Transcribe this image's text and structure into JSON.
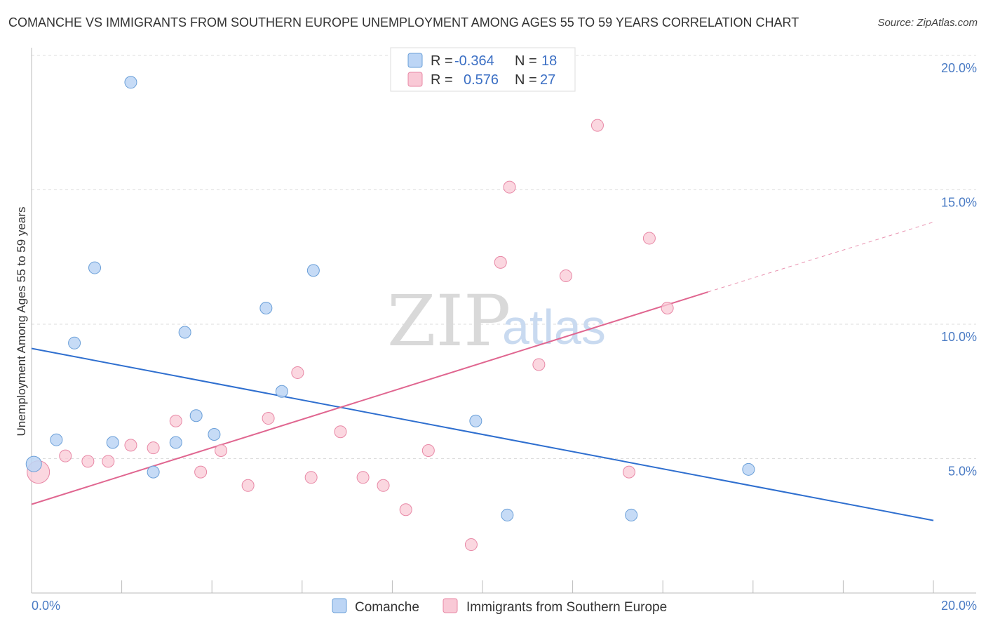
{
  "header": {
    "title": "COMANCHE VS IMMIGRANTS FROM SOUTHERN EUROPE UNEMPLOYMENT AMONG AGES 55 TO 59 YEARS CORRELATION CHART",
    "source": "Source: ZipAtlas.com"
  },
  "watermark": {
    "zip": "ZIP",
    "atlas": "atlas"
  },
  "legend": {
    "r_label": "R =",
    "n_label": "N =",
    "rows": [
      {
        "r": "-0.364",
        "n": "18"
      },
      {
        "r": "0.576",
        "n": "27"
      }
    ]
  },
  "colors": {
    "comanche_fill": "#bcd5f5",
    "comanche_stroke": "#6a9fd8",
    "comanche_line": "#2f6fcf",
    "immigrants_fill": "#f9c9d6",
    "immigrants_stroke": "#e888a6",
    "immigrants_line": "#e06690"
  },
  "chart_data": {
    "type": "scatter",
    "title": "COMANCHE VS IMMIGRANTS FROM SOUTHERN EUROPE UNEMPLOYMENT AMONG AGES 55 TO 59 YEARS CORRELATION CHART",
    "xlabel": "",
    "ylabel": "Unemployment Among Ages 55 to 59 years",
    "xlim": [
      0,
      20
    ],
    "ylim": [
      0,
      20
    ],
    "x_tick_labels": [
      "0.0%",
      "20.0%"
    ],
    "y_ticks": [
      5,
      10,
      15,
      20
    ],
    "y_tick_labels": [
      "5.0%",
      "10.0%",
      "15.0%",
      "20.0%"
    ],
    "grid": true,
    "legend_position": "top-center",
    "series": [
      {
        "name": "Comanche",
        "r": -0.364,
        "n": 18,
        "points": [
          [
            0.05,
            4.8
          ],
          [
            0.55,
            5.7
          ],
          [
            0.95,
            9.3
          ],
          [
            1.4,
            12.1
          ],
          [
            1.8,
            5.6
          ],
          [
            2.2,
            19.0
          ],
          [
            2.7,
            4.5
          ],
          [
            3.2,
            5.6
          ],
          [
            3.4,
            9.7
          ],
          [
            3.65,
            6.6
          ],
          [
            4.05,
            5.9
          ],
          [
            5.2,
            10.6
          ],
          [
            5.55,
            7.5
          ],
          [
            6.25,
            12.0
          ],
          [
            9.85,
            6.4
          ],
          [
            10.55,
            2.9
          ],
          [
            13.3,
            2.9
          ],
          [
            15.9,
            4.6
          ]
        ],
        "trend": {
          "x0": 0,
          "y0": 9.1,
          "x1": 20,
          "y1": 2.7
        }
      },
      {
        "name": "Immigrants from Southern Europe",
        "r": 0.576,
        "n": 27,
        "points": [
          [
            0.15,
            4.5
          ],
          [
            0.75,
            5.1
          ],
          [
            1.25,
            4.9
          ],
          [
            1.7,
            4.9
          ],
          [
            2.2,
            5.5
          ],
          [
            2.7,
            5.4
          ],
          [
            3.2,
            6.4
          ],
          [
            3.75,
            4.5
          ],
          [
            4.2,
            5.3
          ],
          [
            4.8,
            4.0
          ],
          [
            5.25,
            6.5
          ],
          [
            5.9,
            8.2
          ],
          [
            6.2,
            4.3
          ],
          [
            6.85,
            6.0
          ],
          [
            7.35,
            4.3
          ],
          [
            7.8,
            4.0
          ],
          [
            8.3,
            3.1
          ],
          [
            8.8,
            5.3
          ],
          [
            9.75,
            1.8
          ],
          [
            10.4,
            12.3
          ],
          [
            10.6,
            15.1
          ],
          [
            11.25,
            8.5
          ],
          [
            11.85,
            11.8
          ],
          [
            12.55,
            17.4
          ],
          [
            13.25,
            4.5
          ],
          [
            13.7,
            13.2
          ],
          [
            14.1,
            10.6
          ]
        ],
        "trend": {
          "x0": 0,
          "y0": 3.3,
          "x1": 15.0,
          "y1": 11.2
        },
        "trend_dashed": {
          "x0": 15.0,
          "y0": 11.2,
          "x1": 20,
          "y1": 13.8
        }
      }
    ]
  },
  "bottom_legend": {
    "items": [
      {
        "label": "Comanche"
      },
      {
        "label": "Immigrants from Southern Europe"
      }
    ]
  }
}
